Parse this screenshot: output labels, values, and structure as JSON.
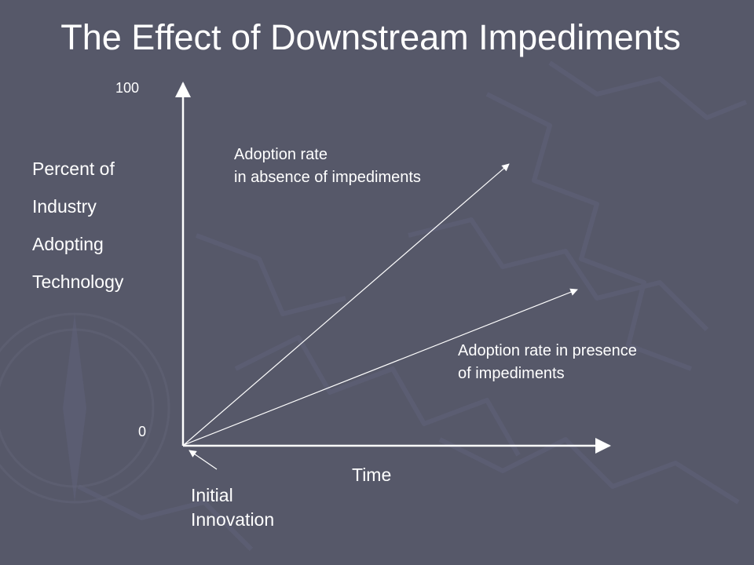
{
  "title": "The Effect of Downstream Impediments",
  "axes": {
    "y_top_tick": "100",
    "y_bottom_tick": "0",
    "y_label_lines": [
      "Percent of",
      "Industry",
      "Adopting",
      "Technology"
    ],
    "x_label": "Time"
  },
  "lines": {
    "absence_label_lines": [
      "Adoption rate",
      "in absence of impediments"
    ],
    "presence_label_lines": [
      "Adoption rate in presence",
      "of impediments"
    ]
  },
  "origin_annotation_lines": [
    "Initial",
    "Innovation"
  ],
  "colors": {
    "background": "#565869",
    "foreground": "#ffffff"
  }
}
